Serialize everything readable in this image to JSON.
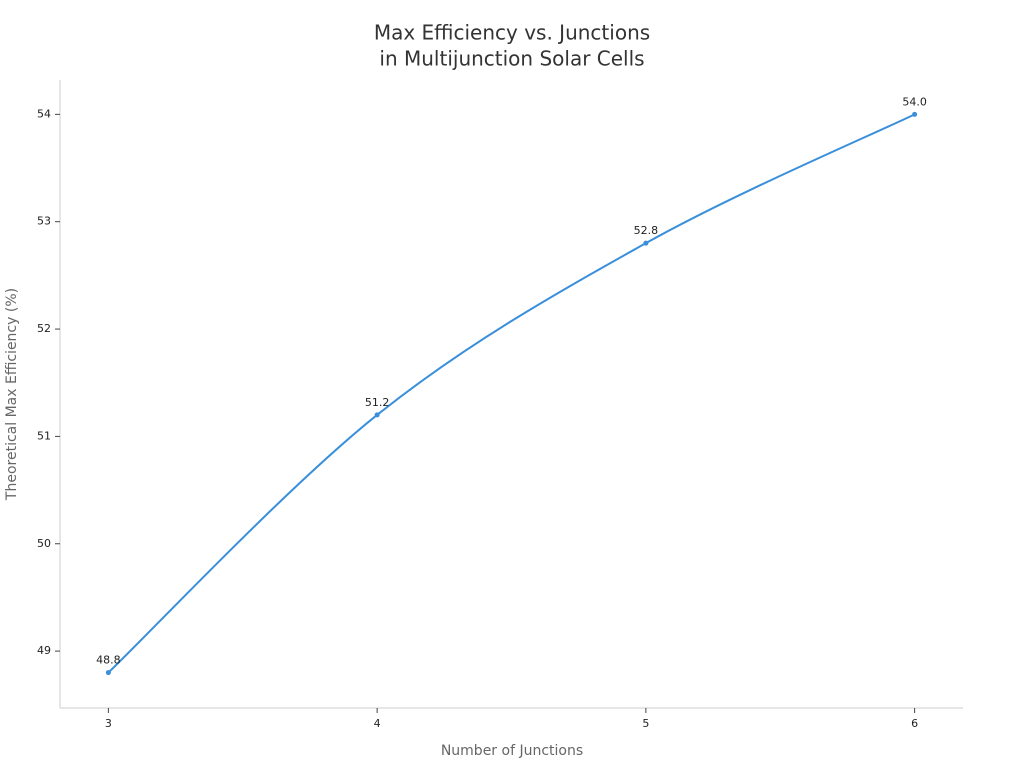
{
  "chart_data": {
    "type": "line",
    "title": [
      "Max Efficiency vs. Junctions",
      "in Multijunction Solar Cells"
    ],
    "x_label": "Number of Junctions",
    "y_label": "Theoretical Max Efficiency (%)",
    "x": [
      3,
      4,
      5,
      6
    ],
    "series": [
      {
        "name": "Theoretical Max Efficiency",
        "color": "#3a8fdb",
        "values": [
          48.8,
          51.2,
          52.8,
          54.0
        ],
        "value_labels": [
          "48.8",
          "51.2",
          "52.8",
          "54.0"
        ]
      }
    ],
    "xlim": [
      2.82,
      6.18
    ],
    "xticks": [
      3,
      4,
      5,
      6
    ],
    "ylim": [
      48.47,
      54.32
    ],
    "yticks": [
      49,
      50,
      51,
      52,
      53,
      54
    ],
    "grid": false,
    "smooth": true
  }
}
